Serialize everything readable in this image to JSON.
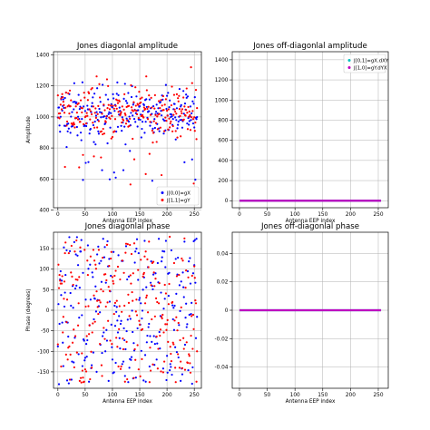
{
  "colors": {
    "xx": "#0000ff",
    "yy": "#ff0000",
    "xy": "#00bfbf",
    "yx": "#bf00bf",
    "grid": "#b0b0b0"
  },
  "chart_data": [
    {
      "id": "p1",
      "type": "scatter",
      "title": "Jones diagonlal amplitude",
      "xlabel": "Antenna EEP index",
      "ylabel": "Amplitude",
      "xlim": [
        -8,
        263
      ],
      "ylim": [
        415,
        1420
      ],
      "xticks": [
        0,
        50,
        100,
        150,
        200,
        250
      ],
      "yticks": [
        400,
        600,
        800,
        1000,
        1200,
        1400
      ],
      "grid": true,
      "legend": "bottom-right",
      "series": [
        {
          "name": "J[0,0]=gX",
          "color": "#0000ff",
          "mode": "points",
          "gen": {
            "kind": "amp",
            "seed": 11,
            "n": 256
          }
        },
        {
          "name": "J[1,1]=gY",
          "color": "#ff0000",
          "mode": "points",
          "gen": {
            "kind": "amp",
            "seed": 29,
            "n": 256
          }
        }
      ]
    },
    {
      "id": "p2",
      "type": "line",
      "title": "Jones off-diagonlal amplitude",
      "xlabel": "Antenna EEP index",
      "ylabel": "",
      "xlim": [
        -13,
        268
      ],
      "ylim": [
        -70,
        1480
      ],
      "xticks": [
        0,
        50,
        100,
        150,
        200,
        250
      ],
      "yticks": [
        0,
        200,
        400,
        600,
        800,
        1000,
        1200,
        1400
      ],
      "grid": true,
      "legend": "top-right",
      "series": [
        {
          "name": "J[0,1]=gX.dXY",
          "color": "#00bfbf",
          "mode": "line",
          "x": [
            0,
            255
          ],
          "y": [
            0,
            0
          ]
        },
        {
          "name": "J[1,0]=gY.dYX",
          "color": "#bf00bf",
          "mode": "line",
          "x": [
            0,
            255
          ],
          "y": [
            0,
            0
          ]
        }
      ]
    },
    {
      "id": "p3",
      "type": "scatter",
      "title": "Jones diagonlal phase",
      "xlabel": "Antenna EEP index",
      "ylabel": "Phase (degrees)",
      "xlim": [
        -8,
        263
      ],
      "ylim": [
        -190,
        190
      ],
      "xticks": [
        0,
        50,
        100,
        150,
        200,
        250
      ],
      "yticks": [
        -150,
        -100,
        -50,
        0,
        50,
        100,
        150
      ],
      "grid": true,
      "legend": "",
      "series": [
        {
          "name": "J[0,0]=gX",
          "color": "#0000ff",
          "mode": "points",
          "gen": {
            "kind": "phase",
            "seed": 47,
            "n": 256
          }
        },
        {
          "name": "J[1,1]=gY",
          "color": "#ff0000",
          "mode": "points",
          "gen": {
            "kind": "phase",
            "seed": 83,
            "n": 256
          }
        }
      ]
    },
    {
      "id": "p4",
      "type": "line",
      "title": "Jones off-diagonlal phase",
      "xlabel": "Antenna EEP index",
      "ylabel": "",
      "xlim": [
        -13,
        268
      ],
      "ylim": [
        -0.055,
        0.055
      ],
      "xticks": [
        0,
        50,
        100,
        150,
        200,
        250
      ],
      "yticks": [
        -0.04,
        -0.02,
        0.0,
        0.02,
        0.04
      ],
      "grid": true,
      "legend": "",
      "series": [
        {
          "name": "J[0,1]=gX.dXY",
          "color": "#00bfbf",
          "mode": "line",
          "x": [
            0,
            255
          ],
          "y": [
            0,
            0
          ]
        },
        {
          "name": "J[1,0]=gY.dYX",
          "color": "#bf00bf",
          "mode": "line",
          "x": [
            0,
            255
          ],
          "y": [
            0,
            0
          ]
        }
      ]
    }
  ]
}
